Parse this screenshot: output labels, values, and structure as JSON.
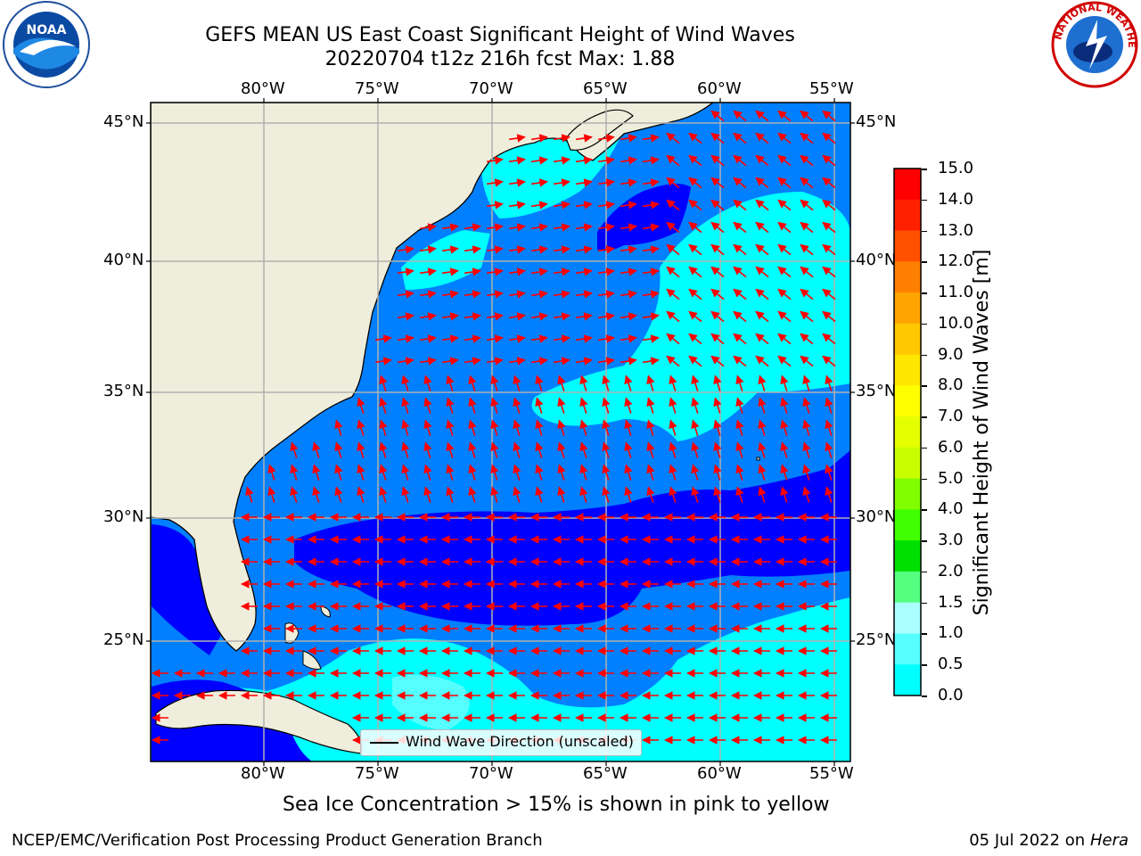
{
  "title": {
    "line1": "GEFS MEAN US East Coast Significant Height of Wind Waves",
    "line2": "20220704 t12z 216h fcst   Max: 1.88"
  },
  "map": {
    "lon_labels": [
      "80°W",
      "75°W",
      "70°W",
      "65°W",
      "60°W",
      "55°W"
    ],
    "lat_labels": [
      "45°N",
      "40°N",
      "35°N",
      "30°N",
      "25°N"
    ],
    "legend_text": "Wind Wave Direction (unscaled)",
    "land_color": "#efeedc",
    "ocean_colors": [
      "#0000ff",
      "#0080ff",
      "#00ffff",
      "#55ffff"
    ],
    "arrow_color": "#ff0000"
  },
  "colorbar": {
    "label": "Significant Height of Wind Waves [m]",
    "ticks": [
      "15.0",
      "14.0",
      "13.0",
      "12.0",
      "11.0",
      "10.0",
      "9.0",
      "8.0",
      "7.0",
      "6.0",
      "5.0",
      "4.0",
      "3.0",
      "2.0",
      "1.5",
      "1.0",
      "0.5",
      "0.0"
    ],
    "colors": [
      "#ff0000",
      "#ff2000",
      "#ff5000",
      "#ff8000",
      "#ffa500",
      "#ffc800",
      "#ffe600",
      "#ffff00",
      "#e6ff00",
      "#c8ff00",
      "#80ff00",
      "#40ff00",
      "#00e000",
      "#55ff80",
      "#aaffff",
      "#55ffff",
      "#00ffff",
      "#0080ff",
      "#0000ff"
    ]
  },
  "caption": "Sea Ice Concentration > 15% is shown in pink to yellow",
  "footer": {
    "left": "NCEP/EMC/Verification Post Processing Product Generation Branch",
    "date": "05 Jul 2022 on",
    "host": "Hera"
  },
  "logos": {
    "left_text": "NOAA",
    "right_text": "NATIONAL WEATHER SERVICE"
  }
}
